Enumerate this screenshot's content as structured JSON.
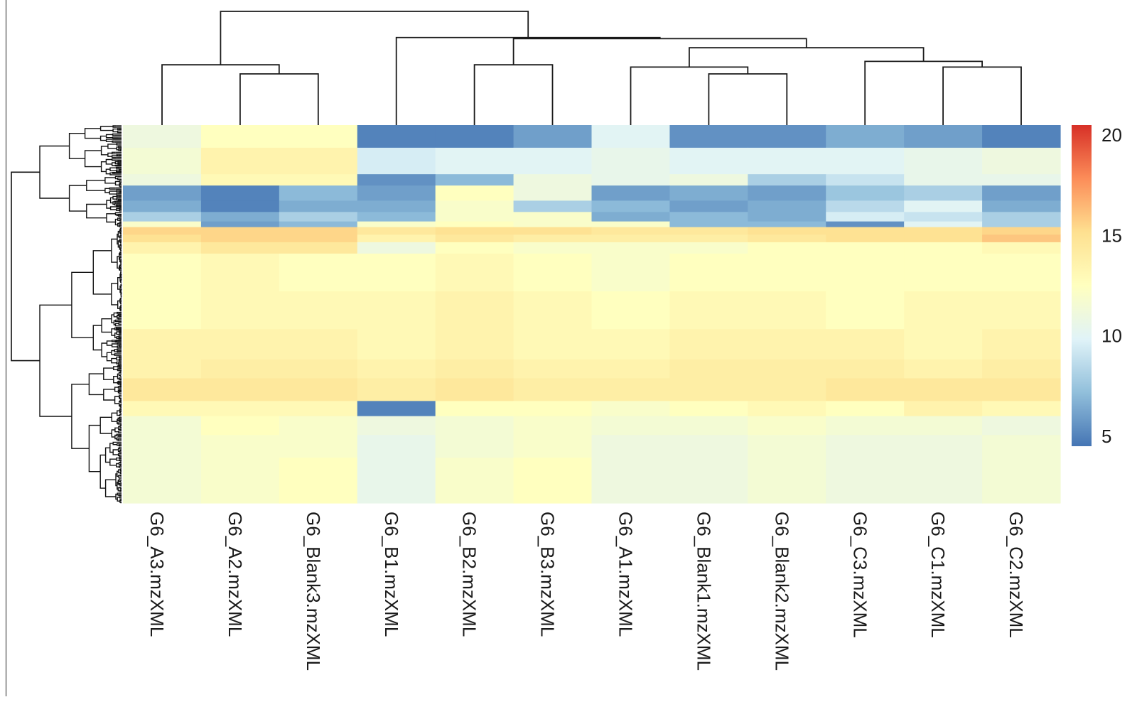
{
  "chart_data": {
    "type": "heatmap",
    "title": "",
    "xlabel": "",
    "ylabel": "",
    "columns": [
      "G6_A3.mzXML",
      "G6_A2.mzXML",
      "G6_Blank3.mzXML",
      "G6_B1.mzXML",
      "G6_B2.mzXML",
      "G6_B3.mzXML",
      "G6_A1.mzXML",
      "G6_Blank1.mzXML",
      "G6_Blank2.mzXML",
      "G6_C3.mzXML",
      "G6_C1.mzXML",
      "G6_C2.mzXML"
    ],
    "color_scale": {
      "min": 4.5,
      "max": 20.5,
      "ticks": [
        5,
        10,
        15,
        20
      ],
      "tick_labels": [
        "5",
        "10",
        "15",
        "20"
      ],
      "colors": [
        "#4575b4",
        "#91bfdb",
        "#e0f3f8",
        "#ffffbf",
        "#fee090",
        "#fc8d59",
        "#d73027"
      ],
      "legend": "right"
    },
    "row_dendrogram": true,
    "column_dendrogram": {
      "order_note": "",
      "merges": [
        {
          "left": 1,
          "right": 2,
          "height": 0.45
        },
        {
          "left": 0,
          "right": 12,
          "height": 0.53
        },
        {
          "left": 7,
          "right": 8,
          "height": 0.45
        },
        {
          "left": 6,
          "right": 14,
          "height": 0.51
        },
        {
          "left": 10,
          "right": 11,
          "height": 0.51
        },
        {
          "left": 9,
          "right": 16,
          "height": 0.56
        },
        {
          "left": 4,
          "right": 5,
          "height": 0.53
        },
        {
          "left": 15,
          "right": 17,
          "height": 0.68
        },
        {
          "left": 18,
          "right": 19,
          "height": 0.76
        },
        {
          "left": 3,
          "right": 20,
          "height": 0.77
        },
        {
          "left": 13,
          "right": 21,
          "height": 1.0
        }
      ]
    },
    "row_bands": [
      {
        "from": 0.0,
        "to": 0.06,
        "values": [
          11,
          12.5,
          12.5,
          5,
          5,
          6,
          10,
          5.5,
          5.5,
          6.5,
          6,
          5
        ]
      },
      {
        "from": 0.06,
        "to": 0.13,
        "values": [
          11.5,
          13.5,
          13.5,
          9.5,
          10,
          10,
          10.5,
          10,
          10,
          10,
          10.5,
          11
        ]
      },
      {
        "from": 0.13,
        "to": 0.16,
        "values": [
          11,
          13,
          13,
          5.5,
          7,
          11,
          10.5,
          11,
          8,
          9,
          10.5,
          10.5
        ]
      },
      {
        "from": 0.16,
        "to": 0.2,
        "values": [
          6,
          5,
          7,
          6,
          12.5,
          11,
          6,
          6.5,
          6,
          7.5,
          8,
          6
        ]
      },
      {
        "from": 0.2,
        "to": 0.23,
        "values": [
          6.5,
          5,
          6.5,
          6.5,
          12,
          8,
          7,
          6,
          6.5,
          8.5,
          10,
          6.5
        ]
      },
      {
        "from": 0.23,
        "to": 0.255,
        "values": [
          8,
          6.5,
          8,
          7,
          12,
          12,
          6.5,
          7,
          6.5,
          9.5,
          9,
          8
        ]
      },
      {
        "from": 0.255,
        "to": 0.27,
        "values": [
          12,
          6,
          7,
          12,
          12.5,
          12,
          12,
          7,
          7,
          5.5,
          10,
          8
        ]
      },
      {
        "from": 0.27,
        "to": 0.29,
        "values": [
          15.5,
          15.5,
          15.5,
          14.5,
          15,
          15,
          14.5,
          14.5,
          15,
          15,
          15,
          15.5
        ]
      },
      {
        "from": 0.29,
        "to": 0.31,
        "values": [
          15,
          15.5,
          15.5,
          13.5,
          14.5,
          14,
          14,
          14,
          14.5,
          15,
          15,
          16
        ]
      },
      {
        "from": 0.31,
        "to": 0.34,
        "values": [
          13.5,
          14.5,
          14.5,
          11,
          12.5,
          12,
          12,
          12,
          12.5,
          12.5,
          12.5,
          13
        ]
      },
      {
        "from": 0.34,
        "to": 0.44,
        "values": [
          12.5,
          13,
          12.5,
          12.5,
          13,
          12.5,
          12,
          12.5,
          12.5,
          12.5,
          12.5,
          12.5
        ]
      },
      {
        "from": 0.44,
        "to": 0.54,
        "values": [
          12.5,
          13,
          13,
          13,
          13.5,
          13,
          12.5,
          13,
          13,
          12.5,
          13,
          13
        ]
      },
      {
        "from": 0.54,
        "to": 0.62,
        "values": [
          13.5,
          13.5,
          13.5,
          13,
          13.5,
          13,
          13,
          13.5,
          13.5,
          13.5,
          13,
          13.5
        ]
      },
      {
        "from": 0.62,
        "to": 0.67,
        "values": [
          13.5,
          14,
          14,
          13.5,
          14,
          13.5,
          13.5,
          14,
          14,
          14,
          13.5,
          14
        ]
      },
      {
        "from": 0.67,
        "to": 0.73,
        "values": [
          14.5,
          14.5,
          14.5,
          14,
          14.5,
          14,
          14,
          14,
          14,
          14.5,
          14.5,
          14.5
        ]
      },
      {
        "from": 0.73,
        "to": 0.77,
        "values": [
          13,
          13,
          13,
          5,
          12.5,
          12.5,
          12,
          12.5,
          13,
          12.5,
          13.5,
          13
        ]
      },
      {
        "from": 0.77,
        "to": 0.82,
        "values": [
          11.5,
          12.5,
          12,
          11,
          11.5,
          12,
          11.5,
          11.5,
          12,
          11.5,
          11.5,
          11
        ]
      },
      {
        "from": 0.82,
        "to": 0.88,
        "values": [
          11.5,
          12,
          12,
          10.5,
          11.5,
          12,
          11,
          11,
          11.5,
          11,
          11,
          11.5
        ]
      },
      {
        "from": 0.88,
        "to": 1.0,
        "values": [
          11.5,
          12,
          12.5,
          10.5,
          12,
          12.5,
          11,
          11,
          11.5,
          11,
          11,
          11.5
        ]
      }
    ]
  }
}
